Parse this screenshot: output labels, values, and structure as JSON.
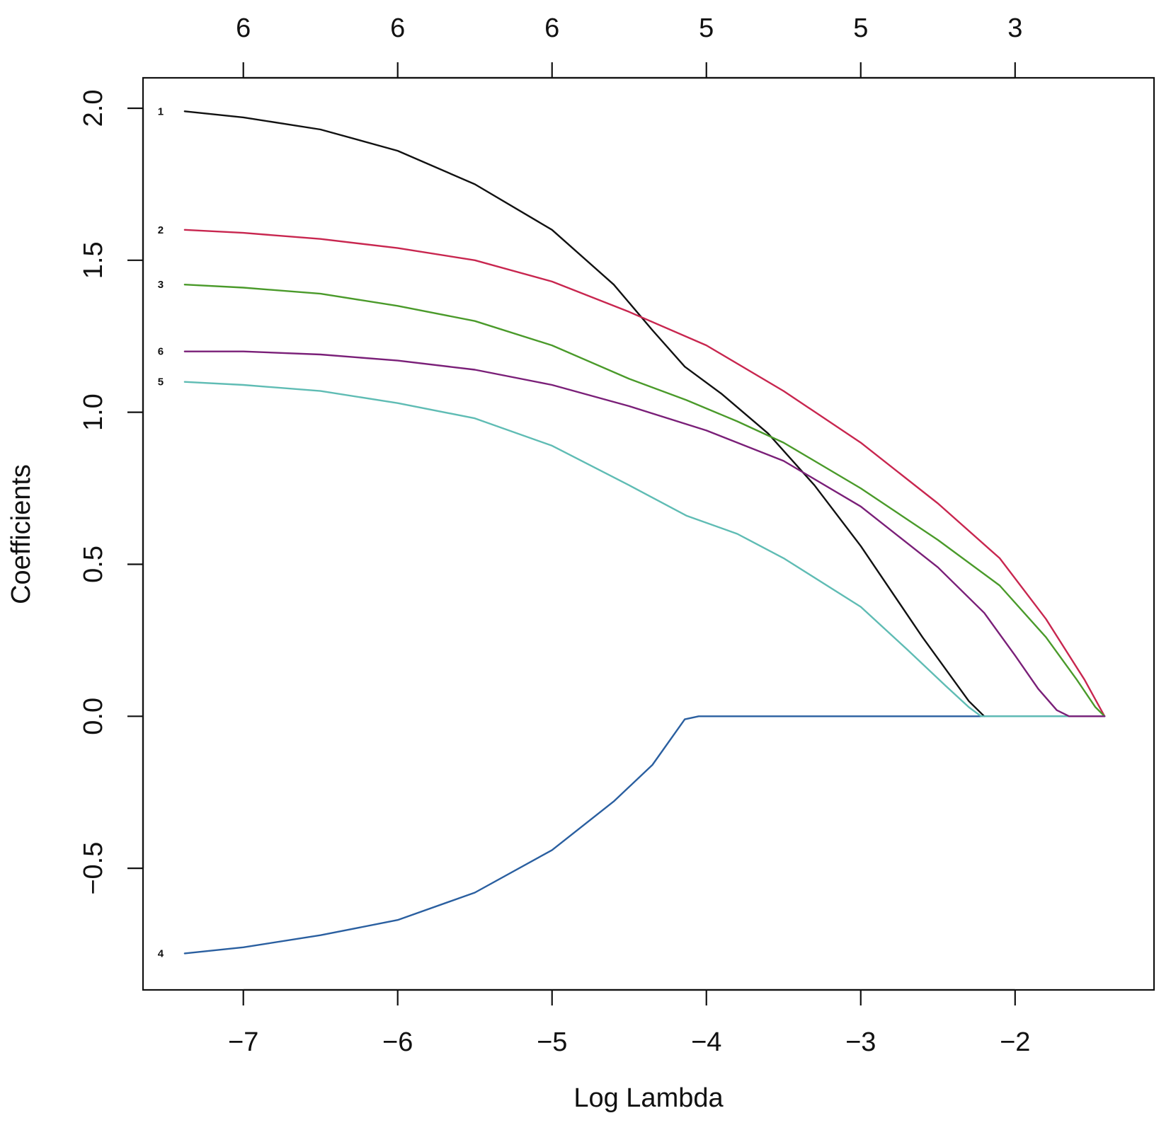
{
  "chart_data": {
    "type": "line",
    "title": "",
    "xlabel": "Log Lambda",
    "ylabel": "Coefficients",
    "xlim": [
      -7.65,
      -1.1
    ],
    "ylim": [
      -0.9,
      2.1
    ],
    "x_ticks": [
      -7,
      -6,
      -5,
      -4,
      -3,
      -2
    ],
    "x_tick_labels": [
      "−7",
      "−6",
      "−5",
      "−4",
      "−3",
      "−2"
    ],
    "y_ticks": [
      -0.5,
      0.0,
      0.5,
      1.0,
      1.5,
      2.0
    ],
    "y_tick_labels": [
      "−0.5",
      "0.0",
      "0.5",
      "1.0",
      "1.5",
      "2.0"
    ],
    "top_axis": {
      "ticks": [
        -7,
        -6,
        -5,
        -4,
        -3,
        -2
      ],
      "labels": [
        "6",
        "6",
        "6",
        "5",
        "5",
        "3"
      ]
    },
    "grid": false,
    "legend": "none",
    "series": [
      {
        "name": "1",
        "color": "#111111",
        "x": [
          -7.38,
          -7.0,
          -6.5,
          -6.0,
          -5.5,
          -5.0,
          -4.6,
          -4.35,
          -4.14,
          -3.9,
          -3.6,
          -3.3,
          -3.0,
          -2.6,
          -2.3,
          -2.2
        ],
        "y": [
          1.99,
          1.97,
          1.93,
          1.86,
          1.75,
          1.6,
          1.42,
          1.27,
          1.15,
          1.06,
          0.93,
          0.76,
          0.56,
          0.26,
          0.05,
          0.0
        ]
      },
      {
        "name": "2",
        "color": "#c8264f",
        "x": [
          -7.38,
          -7.0,
          -6.5,
          -6.0,
          -5.5,
          -5.0,
          -4.5,
          -4.0,
          -3.5,
          -3.0,
          -2.5,
          -2.1,
          -1.8,
          -1.55,
          -1.42
        ],
        "y": [
          1.6,
          1.59,
          1.57,
          1.54,
          1.5,
          1.43,
          1.33,
          1.22,
          1.07,
          0.9,
          0.7,
          0.52,
          0.32,
          0.12,
          0.0
        ]
      },
      {
        "name": "3",
        "color": "#4a9a2a",
        "x": [
          -7.38,
          -7.0,
          -6.5,
          -6.0,
          -5.5,
          -5.0,
          -4.5,
          -4.13,
          -3.8,
          -3.5,
          -3.0,
          -2.5,
          -2.1,
          -1.8,
          -1.6,
          -1.48,
          -1.42
        ],
        "y": [
          1.42,
          1.41,
          1.39,
          1.35,
          1.3,
          1.22,
          1.11,
          1.04,
          0.97,
          0.9,
          0.75,
          0.58,
          0.43,
          0.26,
          0.12,
          0.03,
          0.0
        ]
      },
      {
        "name": "4",
        "color": "#2a5fa0",
        "x": [
          -7.38,
          -7.0,
          -6.5,
          -6.0,
          -5.5,
          -5.0,
          -4.6,
          -4.35,
          -4.14,
          -4.05,
          -3.5,
          -3.0,
          -2.5,
          -2.0,
          -1.42
        ],
        "y": [
          -0.78,
          -0.76,
          -0.72,
          -0.67,
          -0.58,
          -0.44,
          -0.28,
          -0.16,
          -0.01,
          0.0,
          0.0,
          0.0,
          0.0,
          0.0,
          0.0
        ]
      },
      {
        "name": "5",
        "color": "#5fbcb4",
        "x": [
          -7.38,
          -7.0,
          -6.5,
          -6.0,
          -5.5,
          -5.0,
          -4.5,
          -4.13,
          -3.8,
          -3.5,
          -3.0,
          -2.7,
          -2.45,
          -2.3,
          -2.22,
          -2.0,
          -1.42
        ],
        "y": [
          1.1,
          1.09,
          1.07,
          1.03,
          0.98,
          0.89,
          0.76,
          0.66,
          0.6,
          0.52,
          0.36,
          0.22,
          0.1,
          0.03,
          0.0,
          0.0,
          0.0
        ]
      },
      {
        "name": "6",
        "color": "#7a1f78",
        "x": [
          -7.38,
          -7.0,
          -6.5,
          -6.0,
          -5.5,
          -5.0,
          -4.5,
          -4.0,
          -3.5,
          -3.0,
          -2.5,
          -2.2,
          -2.0,
          -1.85,
          -1.73,
          -1.65,
          -1.42
        ],
        "y": [
          1.2,
          1.2,
          1.19,
          1.17,
          1.14,
          1.09,
          1.02,
          0.94,
          0.84,
          0.69,
          0.49,
          0.34,
          0.2,
          0.09,
          0.02,
          0.0,
          0.0
        ]
      }
    ]
  }
}
